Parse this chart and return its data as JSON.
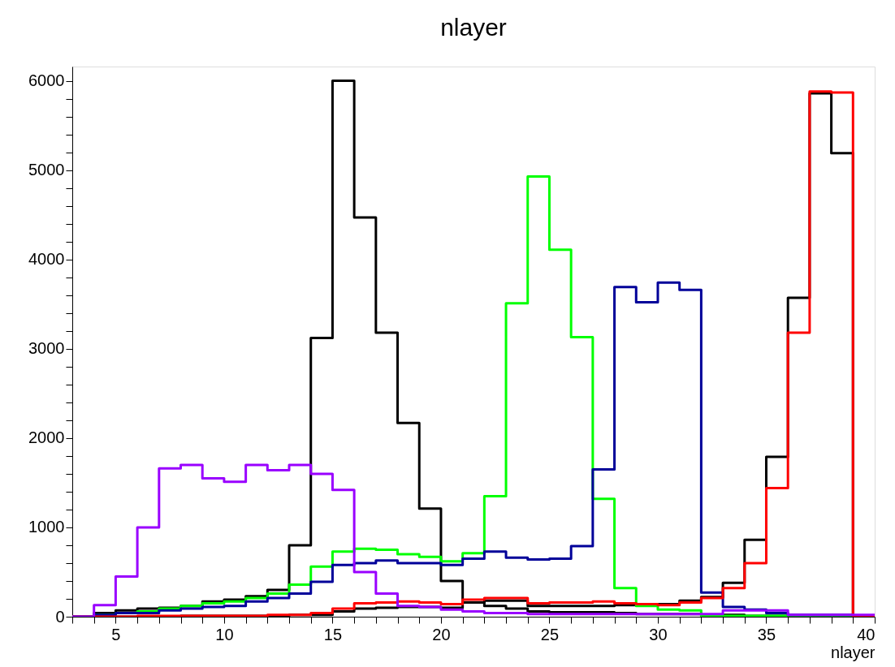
{
  "chart_data": {
    "type": "histogram",
    "title": "nlayer",
    "xlabel": "nlayer",
    "bins": [
      3,
      4,
      5,
      6,
      7,
      8,
      9,
      10,
      11,
      12,
      13,
      14,
      15,
      16,
      17,
      18,
      19,
      20,
      21,
      22,
      23,
      24,
      25,
      26,
      27,
      28,
      29,
      30,
      31,
      32,
      33,
      34,
      35,
      36,
      37,
      38,
      39,
      40
    ],
    "series": [
      {
        "color": "#000000",
        "values": [
          0,
          40,
          70,
          90,
          100,
          120,
          170,
          190,
          230,
          300,
          800,
          3120,
          6000,
          4470,
          3180,
          2170,
          1210,
          400,
          160,
          120,
          90,
          60,
          50,
          50,
          50,
          40,
          30,
          30,
          30,
          20,
          20,
          10,
          10,
          10,
          10,
          10,
          0
        ]
      },
      {
        "color": "#000000",
        "values": [
          0,
          0,
          0,
          0,
          0,
          10,
          10,
          10,
          10,
          10,
          20,
          20,
          60,
          90,
          100,
          110,
          110,
          100,
          160,
          180,
          180,
          120,
          120,
          120,
          120,
          130,
          140,
          140,
          180,
          220,
          380,
          860,
          1790,
          3570,
          5860,
          5190,
          0
        ]
      },
      {
        "color": "#00ff00",
        "values": [
          0,
          20,
          40,
          60,
          90,
          120,
          150,
          170,
          210,
          260,
          360,
          560,
          730,
          760,
          750,
          700,
          670,
          620,
          710,
          1350,
          3510,
          4930,
          4110,
          3130,
          1320,
          320,
          120,
          80,
          70,
          10,
          10,
          10,
          10,
          0,
          0,
          0,
          0
        ]
      },
      {
        "color": "#000099",
        "values": [
          0,
          20,
          40,
          40,
          70,
          90,
          110,
          120,
          170,
          210,
          260,
          390,
          580,
          600,
          630,
          600,
          600,
          580,
          650,
          730,
          660,
          640,
          650,
          790,
          1650,
          3690,
          3520,
          3740,
          3660,
          270,
          110,
          80,
          40,
          20,
          20,
          20,
          0
        ]
      },
      {
        "color": "#ff0000",
        "values": [
          0,
          0,
          0,
          10,
          10,
          10,
          10,
          10,
          10,
          20,
          20,
          40,
          90,
          150,
          160,
          170,
          160,
          140,
          190,
          210,
          210,
          150,
          160,
          160,
          170,
          150,
          140,
          130,
          160,
          210,
          320,
          600,
          1440,
          3180,
          5880,
          5870,
          0
        ]
      },
      {
        "color": "#9900ff",
        "values": [
          0,
          130,
          450,
          1000,
          1660,
          1700,
          1550,
          1510,
          1700,
          1640,
          1700,
          1600,
          1420,
          500,
          260,
          120,
          110,
          80,
          60,
          40,
          40,
          30,
          30,
          30,
          30,
          30,
          30,
          30,
          30,
          30,
          70,
          70,
          70,
          20,
          20,
          20,
          20
        ]
      }
    ],
    "xlim": [
      3,
      40
    ],
    "xticks": [
      {
        "value": 3,
        "label": null
      },
      {
        "value": 4,
        "label": null
      },
      5,
      {
        "value": 6,
        "label": null
      },
      {
        "value": 7,
        "label": null
      },
      {
        "value": 8,
        "label": null
      },
      {
        "value": 9,
        "label": null
      },
      10,
      {
        "value": 11,
        "label": null
      },
      {
        "value": 12,
        "label": null
      },
      {
        "value": 13,
        "label": null
      },
      {
        "value": 14,
        "label": null
      },
      15,
      {
        "value": 16,
        "label": null
      },
      {
        "value": 17,
        "label": null
      },
      {
        "value": 18,
        "label": null
      },
      {
        "value": 19,
        "label": null
      },
      20,
      {
        "value": 21,
        "label": null
      },
      {
        "value": 22,
        "label": null
      },
      {
        "value": 23,
        "label": null
      },
      {
        "value": 24,
        "label": null
      },
      25,
      {
        "value": 26,
        "label": null
      },
      {
        "value": 27,
        "label": null
      },
      {
        "value": 28,
        "label": null
      },
      {
        "value": 29,
        "label": null
      },
      30,
      {
        "value": 31,
        "label": null
      },
      {
        "value": 32,
        "label": null
      },
      {
        "value": 33,
        "label": null
      },
      {
        "value": 34,
        "label": null
      },
      35,
      {
        "value": 36,
        "label": null
      },
      {
        "value": 37,
        "label": null
      },
      {
        "value": 38,
        "label": null
      },
      {
        "value": 39,
        "label": null
      },
      40
    ],
    "ylim": [
      0,
      6160
    ],
    "yticks": [
      0,
      {
        "value": 200,
        "label": null
      },
      {
        "value": 400,
        "label": null
      },
      {
        "value": 600,
        "label": null
      },
      {
        "value": 800,
        "label": null
      },
      1000,
      {
        "value": 1200,
        "label": null
      },
      {
        "value": 1400,
        "label": null
      },
      {
        "value": 1600,
        "label": null
      },
      {
        "value": 1800,
        "label": null
      },
      2000,
      {
        "value": 2200,
        "label": null
      },
      {
        "value": 2400,
        "label": null
      },
      {
        "value": 2600,
        "label": null
      },
      {
        "value": 2800,
        "label": null
      },
      3000,
      {
        "value": 3200,
        "label": null
      },
      {
        "value": 3400,
        "label": null
      },
      {
        "value": 3600,
        "label": null
      },
      {
        "value": 3800,
        "label": null
      },
      4000,
      {
        "value": 4200,
        "label": null
      },
      {
        "value": 4400,
        "label": null
      },
      {
        "value": 4600,
        "label": null
      },
      {
        "value": 4800,
        "label": null
      },
      5000,
      {
        "value": 5200,
        "label": null
      },
      {
        "value": 5400,
        "label": null
      },
      {
        "value": 5600,
        "label": null
      },
      {
        "value": 5800,
        "label": null
      },
      6000
    ],
    "grid": false
  }
}
